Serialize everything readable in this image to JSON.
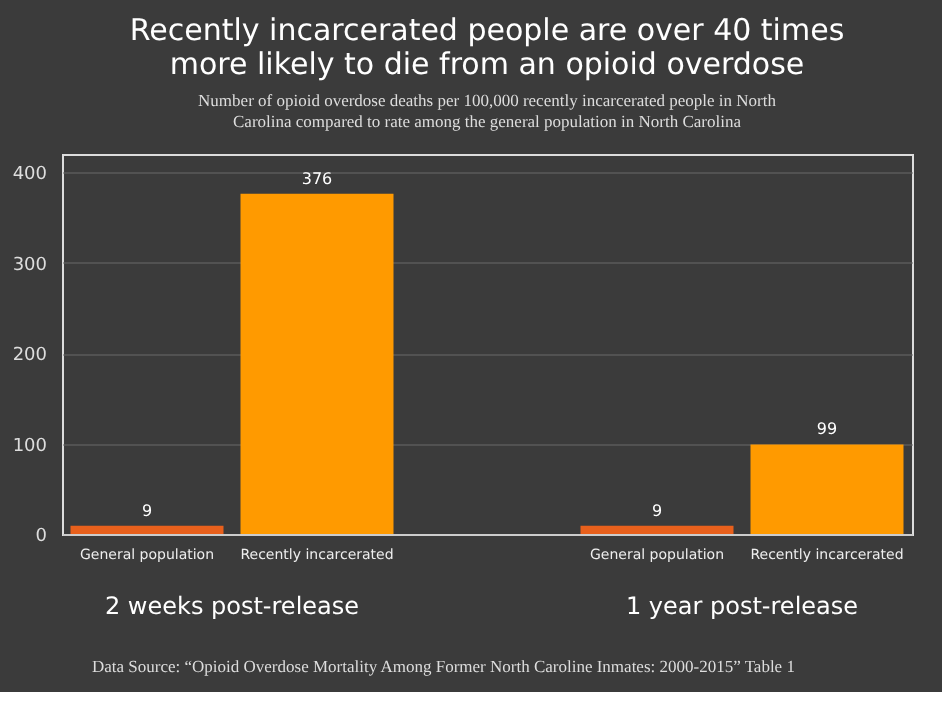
{
  "chart_data": {
    "type": "bar",
    "title": "Recently incarcerated people are over 40 times more likely to die from an opioid overdose",
    "subtitle": "Number of opioid overdose deaths per 100,000 recently incarcerated people in North Carolina compared to rate among the general population in North Carolina",
    "categories": [
      "General population",
      "Recently incarcerated",
      "General population",
      "Recently incarcerated"
    ],
    "values": [
      9,
      376,
      9,
      99
    ],
    "colors": [
      "#e8601c",
      "#ff9a00",
      "#e8601c",
      "#ff9a00"
    ],
    "annotations": [
      "2 weeks post-release",
      "1 year post-release",
      "Data Source: “Opioid Overdose Mortality Among Former North Caroline Inmates: 2000-2015” Table 1"
    ],
    "ylim": [
      0,
      420
    ],
    "yticks": [
      0,
      100,
      200,
      300,
      400
    ],
    "grid": "y",
    "data_labels": true
  }
}
